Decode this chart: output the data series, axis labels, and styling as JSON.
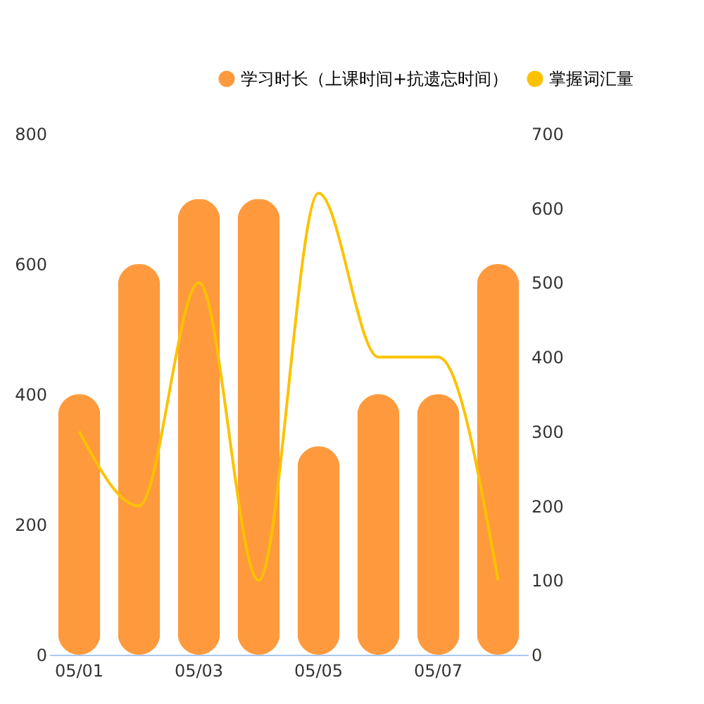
{
  "chart_data": {
    "type": "bar",
    "categories": [
      "05/01",
      null,
      "05/03",
      null,
      "05/05",
      null,
      "05/07",
      null
    ],
    "series": [
      {
        "name": "学习时长（上课时间+抗遗忘时间）",
        "color": "#fe9a3d",
        "values": [
          400,
          600,
          700,
          700,
          320,
          400,
          400,
          600
        ]
      },
      {
        "name": "掌握词汇量",
        "type": "line",
        "axis": "y2",
        "color": "#fcc200",
        "values": [
          300,
          200,
          500,
          100,
          620,
          400,
          400,
          100
        ]
      }
    ],
    "ylim": [
      0,
      800
    ],
    "yticks": [
      0,
      200,
      400,
      600,
      800
    ],
    "y2lim": [
      0,
      700
    ],
    "y2ticks": [
      0,
      100,
      200,
      300,
      400,
      500,
      600,
      700
    ],
    "grid": false,
    "legend": "top right"
  }
}
